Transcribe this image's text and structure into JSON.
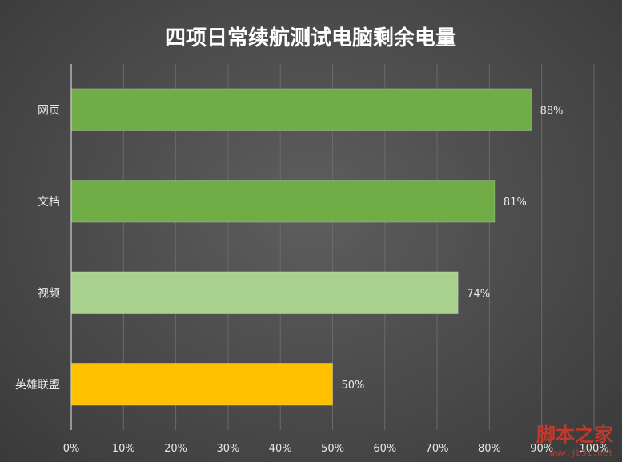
{
  "chart_data": {
    "type": "bar",
    "orientation": "horizontal",
    "title": "四项日常续航测试电脑剩余电量",
    "categories": [
      "网页",
      "文档",
      "视频",
      "英雄联盟"
    ],
    "values": [
      88,
      81,
      74,
      50
    ],
    "data_labels": [
      "88%",
      "81%",
      "74%",
      "50%"
    ],
    "bar_colors": [
      "#70ad47",
      "#70ad47",
      "#a9d18e",
      "#ffc000"
    ],
    "xlim": [
      0,
      100
    ],
    "x_ticks": [
      0,
      10,
      20,
      30,
      40,
      50,
      60,
      70,
      80,
      90,
      100
    ],
    "x_tick_labels": [
      "0%",
      "10%",
      "20%",
      "30%",
      "40%",
      "50%",
      "60%",
      "70%",
      "80%",
      "90%",
      "100%"
    ],
    "grid": true,
    "legend": "none"
  },
  "watermark": {
    "text": "脚本之家",
    "url": "www.jb51.net",
    "color": "#c0392b"
  }
}
